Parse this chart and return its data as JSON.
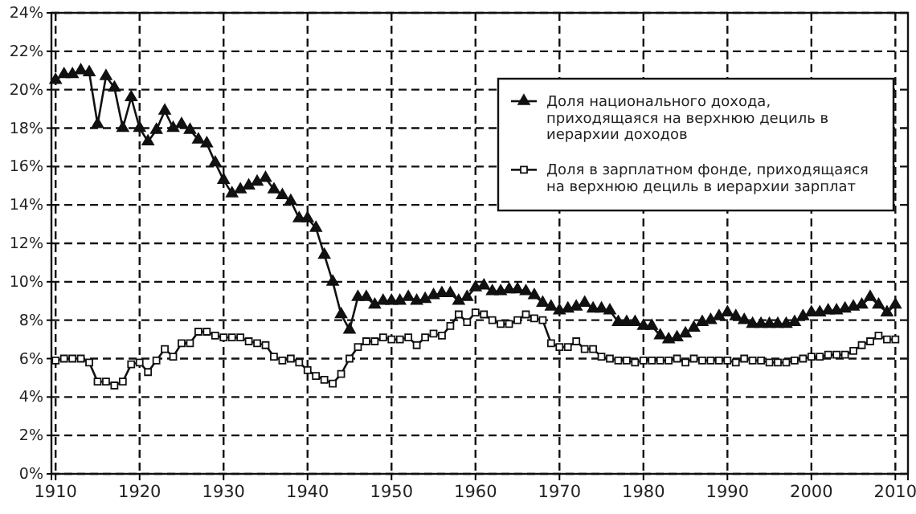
{
  "chart_data": {
    "type": "line",
    "x": [
      1910,
      1911,
      1912,
      1913,
      1914,
      1915,
      1916,
      1917,
      1918,
      1919,
      1920,
      1921,
      1922,
      1923,
      1924,
      1925,
      1926,
      1927,
      1928,
      1929,
      1930,
      1931,
      1932,
      1933,
      1934,
      1935,
      1936,
      1937,
      1938,
      1939,
      1940,
      1941,
      1942,
      1943,
      1944,
      1945,
      1946,
      1947,
      1948,
      1949,
      1950,
      1951,
      1952,
      1953,
      1954,
      1955,
      1956,
      1957,
      1958,
      1959,
      1960,
      1961,
      1962,
      1963,
      1964,
      1965,
      1966,
      1967,
      1968,
      1969,
      1970,
      1971,
      1972,
      1973,
      1974,
      1975,
      1976,
      1977,
      1978,
      1979,
      1980,
      1981,
      1982,
      1983,
      1984,
      1985,
      1986,
      1987,
      1988,
      1989,
      1990,
      1991,
      1992,
      1993,
      1994,
      1995,
      1996,
      1997,
      1998,
      1999,
      2000,
      2001,
      2002,
      2003,
      2004,
      2005,
      2006,
      2007,
      2008,
      2009,
      2010
    ],
    "series": [
      {
        "name": "Доля национального дохода, приходящаяся на верхнюю дециль в иерархии доходов",
        "color": "#111111",
        "marker": "triangle",
        "values": [
          20.5,
          20.8,
          20.8,
          21.0,
          20.9,
          18.2,
          20.7,
          20.1,
          18.0,
          19.6,
          18.0,
          17.3,
          17.9,
          18.9,
          18.0,
          18.2,
          17.9,
          17.4,
          17.2,
          16.2,
          15.3,
          14.6,
          14.8,
          15.0,
          15.2,
          15.4,
          14.8,
          14.5,
          14.2,
          13.3,
          13.3,
          12.8,
          11.4,
          10.0,
          8.3,
          7.5,
          9.2,
          9.2,
          8.8,
          9.0,
          9.0,
          9.0,
          9.2,
          9.0,
          9.1,
          9.3,
          9.4,
          9.4,
          9.0,
          9.2,
          9.7,
          9.8,
          9.5,
          9.5,
          9.6,
          9.6,
          9.5,
          9.3,
          8.9,
          8.7,
          8.5,
          8.6,
          8.7,
          8.9,
          8.6,
          8.6,
          8.5,
          7.9,
          7.9,
          7.9,
          7.7,
          7.7,
          7.2,
          7.0,
          7.1,
          7.3,
          7.6,
          7.9,
          8.0,
          8.2,
          8.4,
          8.2,
          8.0,
          7.8,
          7.8,
          7.8,
          7.8,
          7.8,
          7.9,
          8.2,
          8.4,
          8.4,
          8.5,
          8.5,
          8.6,
          8.7,
          8.8,
          9.2,
          8.8,
          8.4,
          8.8
        ]
      },
      {
        "name": "Доля в зарплатном фонде, приходящаяся на верхнюю дециль в иерархии зарплат",
        "color": "#111111",
        "marker": "square",
        "values": [
          5.9,
          6.0,
          6.0,
          6.0,
          5.8,
          4.8,
          4.8,
          4.6,
          4.8,
          5.7,
          5.8,
          5.3,
          5.9,
          6.5,
          6.1,
          6.8,
          6.8,
          7.4,
          7.4,
          7.2,
          7.1,
          7.1,
          7.1,
          6.9,
          6.8,
          6.7,
          6.1,
          5.9,
          6.0,
          5.8,
          5.4,
          5.1,
          4.9,
          4.7,
          5.2,
          6.0,
          6.6,
          6.9,
          6.9,
          7.1,
          7.0,
          7.0,
          7.1,
          6.7,
          7.1,
          7.3,
          7.2,
          7.7,
          8.3,
          7.9,
          8.4,
          8.3,
          8.0,
          7.8,
          7.8,
          8.0,
          8.3,
          8.1,
          8.0,
          6.8,
          6.6,
          6.6,
          6.9,
          6.5,
          6.5,
          6.1,
          6.0,
          5.9,
          5.9,
          5.8,
          5.9,
          5.9,
          5.9,
          5.9,
          6.0,
          5.8,
          6.0,
          5.9,
          5.9,
          5.9,
          5.9,
          5.8,
          6.0,
          5.9,
          5.9,
          5.8,
          5.8,
          5.8,
          5.9,
          6.0,
          6.1,
          6.1,
          6.2,
          6.2,
          6.2,
          6.4,
          6.7,
          6.9,
          7.2,
          7.0,
          7.0
        ]
      }
    ],
    "xlim": [
      1909.5,
      2011.5
    ],
    "xticks": [
      1910,
      1920,
      1930,
      1940,
      1950,
      1960,
      1970,
      1980,
      1990,
      2000,
      2010
    ],
    "ylim": [
      0,
      24
    ],
    "yticks": [
      {
        "value": 0,
        "label": "0%"
      },
      {
        "value": 2,
        "label": "2%"
      },
      {
        "value": 4,
        "label": "4%"
      },
      {
        "value": 6,
        "label": "6%"
      },
      {
        "value": 8,
        "label": "8%"
      },
      {
        "value": 10,
        "label": "10%"
      },
      {
        "value": 12,
        "label": "12%"
      },
      {
        "value": 14,
        "label": "14%"
      },
      {
        "value": 16,
        "label": "16%"
      },
      {
        "value": 18,
        "label": "18%"
      },
      {
        "value": 20,
        "label": "20%"
      },
      {
        "value": 22,
        "label": "22%"
      },
      {
        "value": 24,
        "label": "24%"
      }
    ],
    "grid": true,
    "legend": "top right",
    "line_style": "solid"
  }
}
